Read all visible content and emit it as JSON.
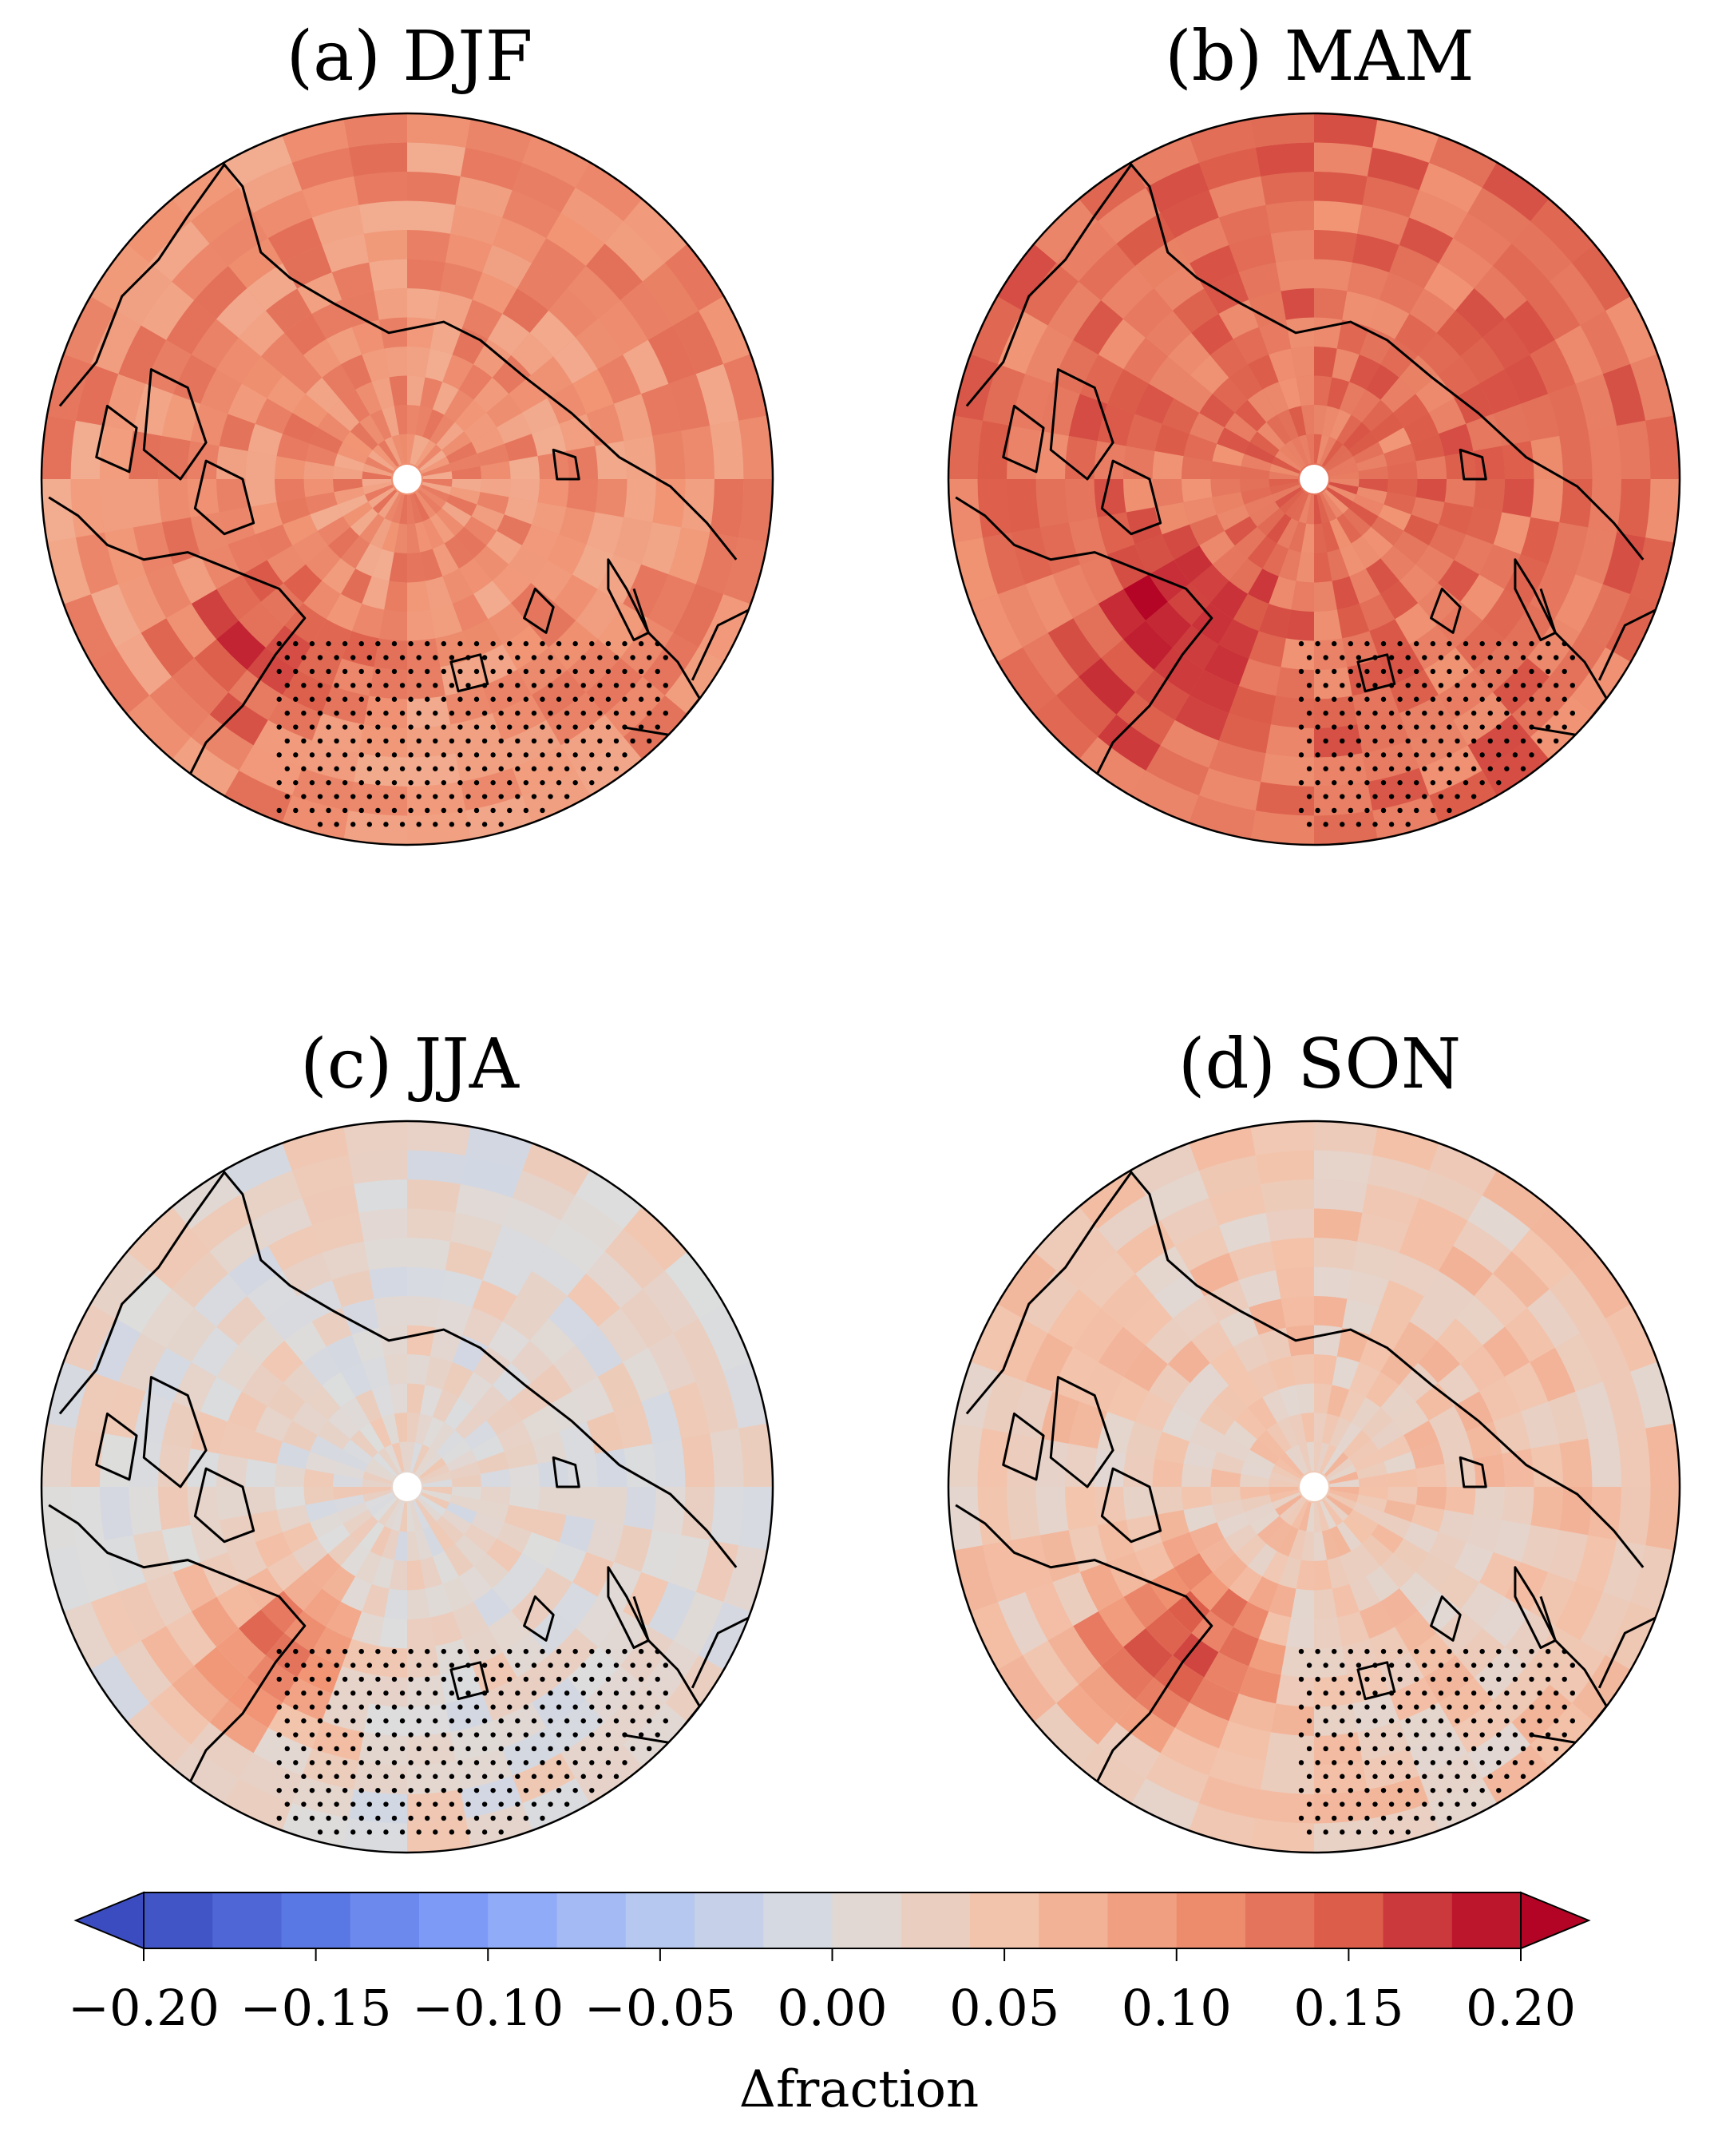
{
  "panels": [
    {
      "id": "a",
      "title": "(a) DJF",
      "level": 0.105,
      "warm_patch": 0.17,
      "stipple_sector": "lower"
    },
    {
      "id": "b",
      "title": "(b) MAM",
      "level": 0.13,
      "warm_patch": 0.2,
      "stipple_sector": "lower-right"
    },
    {
      "id": "c",
      "title": "(c) JJA",
      "level": 0.015,
      "warm_patch": 0.14,
      "stipple_sector": "lower"
    },
    {
      "id": "d",
      "title": "(d) SON",
      "level": 0.04,
      "warm_patch": 0.19,
      "stipple_sector": "lower-right"
    }
  ],
  "colorbar": {
    "label": "Δfraction",
    "vmin": -0.2,
    "vmax": 0.2,
    "extend": "both",
    "colormap": "coolwarm",
    "ticks": [
      "−0.20",
      "−0.15",
      "−0.10",
      "−0.05",
      "0.00",
      "0.05",
      "0.10",
      "0.15",
      "0.20"
    ],
    "tick_values": [
      -0.2,
      -0.15,
      -0.1,
      -0.05,
      0.0,
      0.05,
      0.1,
      0.15,
      0.2
    ]
  },
  "colors": {
    "cold_end": "#3b4cc0",
    "neutral": "#dddddd",
    "warm_end": "#b40426",
    "coastline": "#000000"
  }
}
